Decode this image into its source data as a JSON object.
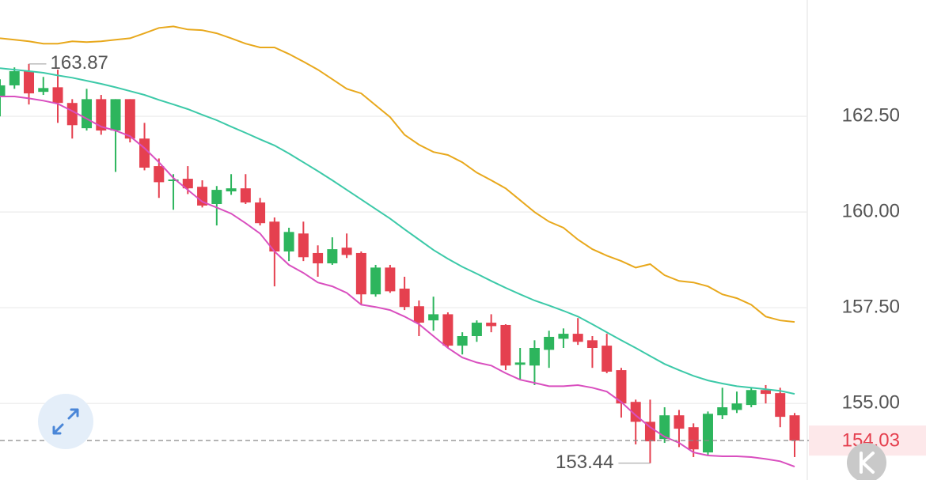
{
  "chart_data": {
    "type": "candlestick",
    "ylim": [
      153.0,
      165.54
    ],
    "yticks": [
      {
        "value": 155,
        "label": "155.00"
      },
      {
        "value": 157.5,
        "label": "157.50"
      },
      {
        "value": 160,
        "label": "160.00"
      },
      {
        "value": 162.5,
        "label": "162.50"
      }
    ],
    "grid": true,
    "up_color": "#2db55d",
    "down_color": "#e5404f",
    "open": [
      163.02,
      163.31,
      163.68,
      163.14,
      163.26,
      162.85,
      162.19,
      162.95,
      162.13,
      162.95,
      161.92,
      161.2,
      160.81,
      160.87,
      160.66,
      160.21,
      160.54,
      160.62,
      160.25,
      159.75,
      158.97,
      159.44,
      158.93,
      158.66,
      159.07,
      158.93,
      157.85,
      158.55,
      158.0,
      157.54,
      157.17,
      157.33,
      156.51,
      156.76,
      157.11,
      157.05,
      156.01,
      155.99,
      156.4,
      156.69,
      156.82,
      156.65,
      156.51,
      155.87,
      155.04,
      154.52,
      154.07,
      154.69,
      154.38,
      153.72,
      154.69,
      154.83,
      154.96,
      155.35,
      155.27,
      154.69
    ],
    "high": [
      163.47,
      163.78,
      163.87,
      163.53,
      163.72,
      162.95,
      163.22,
      163.06,
      162.95,
      162.95,
      162.33,
      161.4,
      160.99,
      161.2,
      160.83,
      160.68,
      160.99,
      160.99,
      160.37,
      159.86,
      159.59,
      159.75,
      159.13,
      159.34,
      159.44,
      158.97,
      158.62,
      158.62,
      158.31,
      157.69,
      157.79,
      157.38,
      156.86,
      157.17,
      157.33,
      157.07,
      156.45,
      156.65,
      156.9,
      156.96,
      157.23,
      156.76,
      156.82,
      155.93,
      155.1,
      155.1,
      154.9,
      154.83,
      154.48,
      154.79,
      155.41,
      155.31,
      155.41,
      155.48,
      155.41,
      154.75
    ],
    "low": [
      162.5,
      163.22,
      162.81,
      163.06,
      162.33,
      161.92,
      162.13,
      162.02,
      161.05,
      161.82,
      161.09,
      160.37,
      160.06,
      160.47,
      160.12,
      159.65,
      160.45,
      160.21,
      159.65,
      158.06,
      158.72,
      158.72,
      158.31,
      158.62,
      158.8,
      157.58,
      157.79,
      157.89,
      157.44,
      156.76,
      156.9,
      156.45,
      156.28,
      156.61,
      156.86,
      155.87,
      155.62,
      155.48,
      155.93,
      156.45,
      156.53,
      155.93,
      155.79,
      154.63,
      153.93,
      153.44,
      153.97,
      153.86,
      153.6,
      153.66,
      154.59,
      154.75,
      154.9,
      155.0,
      154.38,
      153.6
    ],
    "close": [
      163.31,
      163.68,
      163.1,
      163.24,
      162.85,
      162.27,
      162.95,
      162.13,
      162.95,
      161.92,
      161.16,
      160.78,
      160.85,
      160.62,
      160.17,
      160.58,
      160.62,
      160.25,
      159.71,
      158.97,
      159.48,
      158.82,
      158.66,
      159.03,
      158.88,
      157.85,
      158.55,
      157.93,
      157.52,
      157.11,
      157.33,
      156.51,
      156.76,
      157.11,
      157.02,
      155.99,
      156.07,
      156.45,
      156.74,
      156.82,
      156.61,
      156.45,
      155.83,
      155.0,
      154.52,
      154.01,
      154.69,
      154.34,
      153.8,
      154.73,
      154.9,
      155.0,
      155.35,
      155.25,
      154.65,
      154.03
    ],
    "lines": [
      {
        "color": "#e8a81c",
        "values": [
          164.54,
          164.5,
          164.46,
          164.4,
          164.4,
          164.46,
          164.44,
          164.46,
          164.5,
          164.54,
          164.67,
          164.81,
          164.85,
          164.77,
          164.75,
          164.67,
          164.54,
          164.4,
          164.3,
          164.3,
          164.13,
          163.93,
          163.72,
          163.47,
          163.22,
          163.1,
          162.79,
          162.48,
          162.02,
          161.76,
          161.57,
          161.49,
          161.3,
          161.03,
          160.83,
          160.62,
          160.31,
          160.0,
          159.75,
          159.59,
          159.28,
          159.03,
          158.86,
          158.72,
          158.55,
          158.64,
          158.35,
          158.2,
          158.16,
          158.06,
          157.85,
          157.75,
          157.58,
          157.27,
          157.17,
          157.13
        ]
      },
      {
        "color": "#3cc9a8",
        "values": [
          163.76,
          163.72,
          163.68,
          163.64,
          163.57,
          163.51,
          163.43,
          163.35,
          163.26,
          163.16,
          163.06,
          162.93,
          162.81,
          162.69,
          162.54,
          162.4,
          162.23,
          162.07,
          161.9,
          161.74,
          161.53,
          161.3,
          161.07,
          160.83,
          160.58,
          160.33,
          160.08,
          159.83,
          159.55,
          159.28,
          159.01,
          158.78,
          158.57,
          158.39,
          158.2,
          158.02,
          157.85,
          157.69,
          157.56,
          157.42,
          157.27,
          157.07,
          156.86,
          156.65,
          156.45,
          156.24,
          156.03,
          155.87,
          155.72,
          155.6,
          155.52,
          155.45,
          155.41,
          155.37,
          155.33,
          155.25
        ]
      },
      {
        "color": "#d94fbf",
        "values": [
          163.02,
          163.02,
          162.97,
          162.91,
          162.83,
          162.64,
          162.44,
          162.23,
          162.13,
          161.98,
          161.67,
          161.3,
          160.89,
          160.58,
          160.27,
          160.12,
          159.96,
          159.71,
          159.44,
          158.97,
          158.62,
          158.41,
          158.16,
          158.06,
          157.89,
          157.58,
          157.52,
          157.44,
          157.27,
          157.07,
          156.76,
          156.45,
          156.2,
          156.07,
          155.99,
          155.79,
          155.62,
          155.54,
          155.45,
          155.45,
          155.48,
          155.41,
          155.31,
          155.04,
          154.69,
          154.38,
          154.13,
          153.97,
          153.72,
          153.64,
          153.62,
          153.62,
          153.6,
          153.55,
          153.49,
          153.35
        ]
      }
    ],
    "max_label": "163.87",
    "min_label": "153.44",
    "last_label": "154.03"
  }
}
